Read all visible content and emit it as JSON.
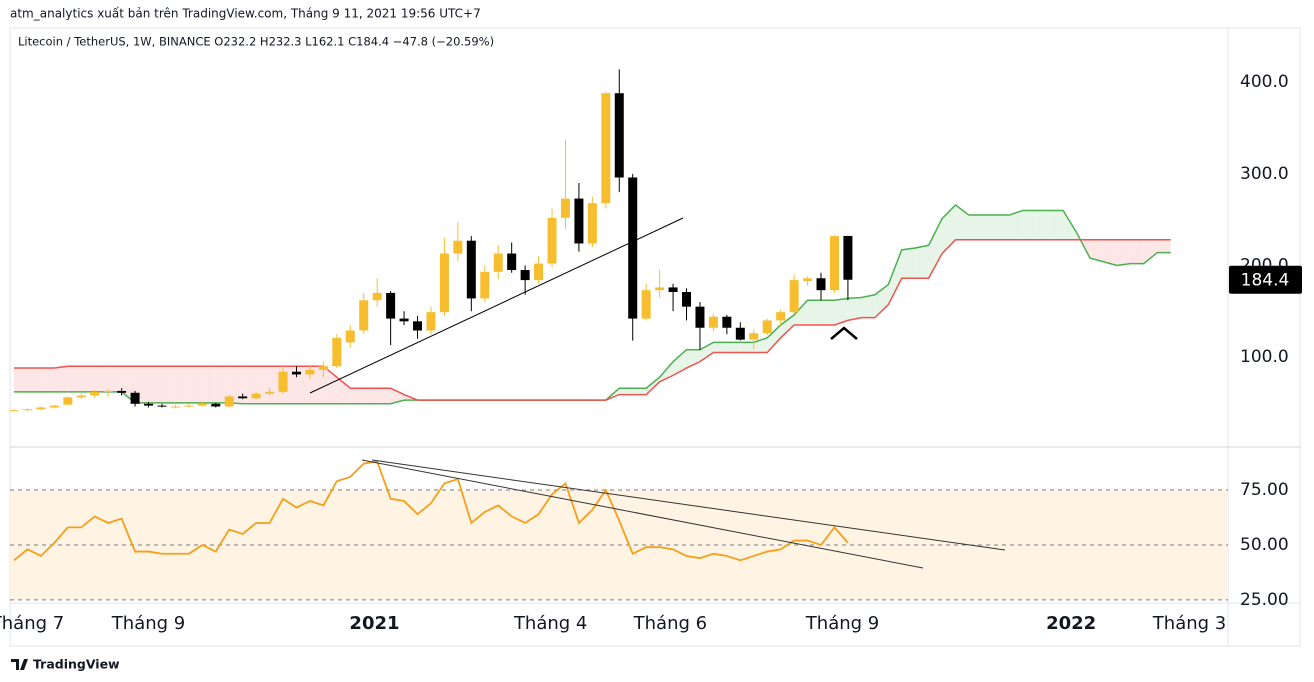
{
  "header": {
    "publisher": "atm_analytics xuất bản trên TradingView.com, Tháng 9 11, 2021 19:56 UTC+7"
  },
  "chart_data": [
    {
      "type": "candlestick",
      "title": "Litecoin / TetherUS, 1W, BINANCE  O232.2  H232.3  L162.1  C184.4  −47.8 (−20.59%)",
      "open": [
        42,
        42,
        43,
        45,
        48,
        56,
        58,
        62,
        63,
        61,
        49,
        47,
        46,
        46,
        47,
        49,
        46,
        57,
        55,
        60,
        62,
        84,
        81,
        86,
        90,
        116,
        129,
        162,
        170,
        142,
        139,
        129,
        149,
        213,
        227,
        164,
        193,
        213,
        195,
        184,
        202,
        252,
        273,
        224,
        268,
        388,
        296,
        142,
        173,
        176,
        171,
        155,
        132,
        144,
        132,
        119,
        126,
        140,
        149,
        183,
        186,
        173,
        232.2
      ],
      "high": [
        43,
        44,
        46,
        48,
        57,
        60,
        64,
        65,
        66,
        63,
        51,
        49,
        48,
        49,
        51,
        50,
        59,
        60,
        62,
        66,
        90,
        90,
        92,
        95,
        125,
        135,
        170,
        186,
        172,
        150,
        145,
        155,
        230,
        247,
        232,
        200,
        222,
        225,
        200,
        210,
        262,
        337,
        290,
        275,
        390,
        414,
        300,
        180,
        195,
        180,
        175,
        160,
        147,
        146,
        138,
        130,
        142,
        152,
        190,
        188,
        192,
        233,
        232.3
      ],
      "low": [
        41,
        41,
        42,
        44,
        47,
        54,
        55,
        57,
        58,
        46,
        45,
        45,
        44,
        45,
        46,
        45,
        45,
        54,
        54,
        58,
        60,
        78,
        76,
        78,
        88,
        110,
        125,
        155,
        113,
        135,
        120,
        125,
        145,
        205,
        150,
        160,
        185,
        192,
        168,
        180,
        198,
        240,
        215,
        220,
        262,
        280,
        118,
        140,
        165,
        150,
        140,
        108,
        128,
        125,
        118,
        108,
        124,
        135,
        148,
        178,
        162,
        170,
        162.1
      ],
      "close": [
        42,
        43,
        45,
        47,
        56,
        58,
        62,
        63,
        61,
        49,
        47,
        46,
        46,
        47,
        49,
        46,
        57,
        55,
        60,
        62,
        84,
        81,
        86,
        90,
        121,
        129,
        162,
        170,
        142,
        139,
        129,
        149,
        213,
        227,
        164,
        193,
        213,
        195,
        184,
        202,
        252,
        273,
        224,
        268,
        388,
        296,
        142,
        173,
        176,
        171,
        155,
        132,
        144,
        132,
        119,
        126,
        140,
        149,
        184,
        186,
        173,
        232,
        184.4
      ],
      "up_color": "#f6be2e",
      "down_color": "#000000",
      "lines": [
        {
          "color": "#4caf50",
          "values": [
            62,
            62,
            62,
            62,
            62,
            62,
            62,
            62,
            62,
            50,
            50,
            50,
            50,
            50,
            50,
            50,
            50,
            49,
            49,
            49,
            49,
            49,
            49,
            49,
            49,
            49,
            49,
            49,
            49,
            53,
            53,
            53,
            53,
            53,
            53,
            53,
            53,
            53,
            53,
            53,
            53,
            53,
            53,
            53,
            53,
            66,
            66,
            66,
            78,
            95,
            108,
            108,
            116,
            116,
            116,
            116,
            121,
            135,
            146,
            162,
            162,
            162,
            164,
            165,
            168,
            179,
            217,
            219,
            222,
            251,
            266,
            255,
            255,
            255,
            255,
            260,
            260,
            260,
            260,
            236,
            208,
            204,
            200,
            202,
            202,
            214,
            214
          ]
        },
        {
          "color": "#ef5350",
          "values": [
            88,
            88,
            88,
            88,
            90,
            90,
            90,
            90,
            90,
            90,
            90,
            90,
            90,
            90,
            90,
            90,
            90,
            90,
            90,
            90,
            90,
            90,
            90,
            90,
            78,
            66,
            66,
            66,
            66,
            59,
            53,
            53,
            53,
            53,
            53,
            53,
            53,
            53,
            53,
            53,
            53,
            53,
            53,
            53,
            53,
            59,
            59,
            59,
            73,
            80,
            88,
            95,
            105,
            105,
            105,
            105,
            105,
            121,
            135,
            135,
            135,
            135,
            140,
            143,
            143,
            157,
            186,
            186,
            186,
            213,
            228,
            228,
            228,
            228,
            228,
            228,
            228,
            228,
            228,
            228,
            228,
            228,
            228,
            228,
            228,
            228,
            228
          ]
        }
      ],
      "cloud_colors": [
        "#e6f5e7",
        "#fde6e6"
      ],
      "xlim": [
        -0.3,
        90.26
      ],
      "ylim": [
        4,
        457
      ],
      "yticks": [
        {
          "value": 100,
          "label": "100.0"
        },
        {
          "value": 200,
          "label": "200.0"
        },
        {
          "value": 300,
          "label": "300.0"
        },
        {
          "value": 400,
          "label": "400.0"
        }
      ]
    },
    {
      "type": "line",
      "values": [
        43,
        48,
        45,
        51,
        58,
        58,
        63,
        60,
        62,
        47,
        47,
        46,
        46,
        46,
        50,
        47,
        57,
        55,
        60,
        60,
        71,
        67,
        70,
        68,
        79,
        81,
        87,
        88,
        71,
        70,
        64,
        69,
        78,
        80,
        60,
        65,
        68,
        63,
        60,
        64,
        73,
        78,
        60,
        66,
        75,
        61,
        46,
        49,
        49,
        48,
        45,
        44,
        46,
        45,
        43,
        45,
        47,
        48,
        52,
        52,
        50,
        58,
        51
      ],
      "color": "#f59f1b",
      "band": [
        25,
        75
      ],
      "band_color": "#fff3e3",
      "xlim": [
        -0.3,
        90.26
      ],
      "ylim": [
        23.6,
        93.2
      ],
      "yticks": [
        {
          "value": 25,
          "label": "25.00"
        },
        {
          "value": 50,
          "label": "50.00"
        },
        {
          "value": 75,
          "label": "75.00"
        }
      ],
      "xticks": [
        {
          "value": 1.0,
          "label": "Tháng 7"
        },
        {
          "value": 10.0,
          "label": "Tháng 9"
        },
        {
          "value": 26.8,
          "label": "2021"
        },
        {
          "value": 39.9,
          "label": "Tháng 4"
        },
        {
          "value": 48.8,
          "label": "Tháng 6"
        },
        {
          "value": 61.6,
          "label": "Tháng 9"
        },
        {
          "value": 78.6,
          "label": "2022"
        },
        {
          "value": 87.4,
          "label": "Tháng 3"
        }
      ]
    }
  ],
  "footer": {
    "brand": "TradingView"
  }
}
